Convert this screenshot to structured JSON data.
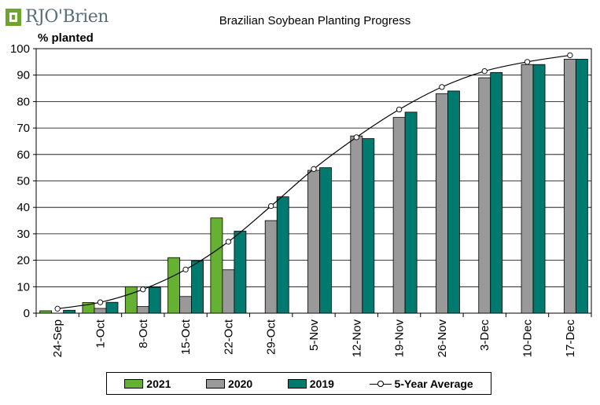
{
  "logo": {
    "text": "RJO'Brien",
    "color": "#6fa52f"
  },
  "chart_data": {
    "type": "bar",
    "title": "Brazilian Soybean Planting Progress",
    "ylabel": "% planted",
    "xlabel": "",
    "ylim": [
      0,
      100
    ],
    "yticks": [
      0,
      10,
      20,
      30,
      40,
      50,
      60,
      70,
      80,
      90,
      100
    ],
    "categories": [
      "24-Sep",
      "1-Oct",
      "8-Oct",
      "15-Oct",
      "22-Oct",
      "29-Oct",
      "5-Nov",
      "12-Nov",
      "19-Nov",
      "26-Nov",
      "3-Dec",
      "10-Dec",
      "17-Dec"
    ],
    "series": [
      {
        "name": "2021",
        "color": "#66b032",
        "values": [
          0.9,
          4,
          10,
          21,
          36,
          null,
          null,
          null,
          null,
          null,
          null,
          null,
          null
        ]
      },
      {
        "name": "2020",
        "color": "#999999",
        "values": [
          0,
          1.8,
          2.5,
          6.3,
          16.4,
          35,
          54,
          67,
          74,
          83,
          89,
          94,
          96
        ]
      },
      {
        "name": "2019",
        "color": "#007a6e",
        "values": [
          1.1,
          4.1,
          9.8,
          19.8,
          31,
          44,
          55,
          66,
          76,
          84,
          91,
          94,
          96
        ]
      }
    ],
    "line_series": {
      "name": "5-Year Average",
      "color": "#000000",
      "values": [
        1.7,
        4.1,
        9,
        16.5,
        27,
        40.5,
        54.5,
        66.5,
        77,
        85.5,
        91.5,
        95,
        97.5
      ]
    }
  }
}
